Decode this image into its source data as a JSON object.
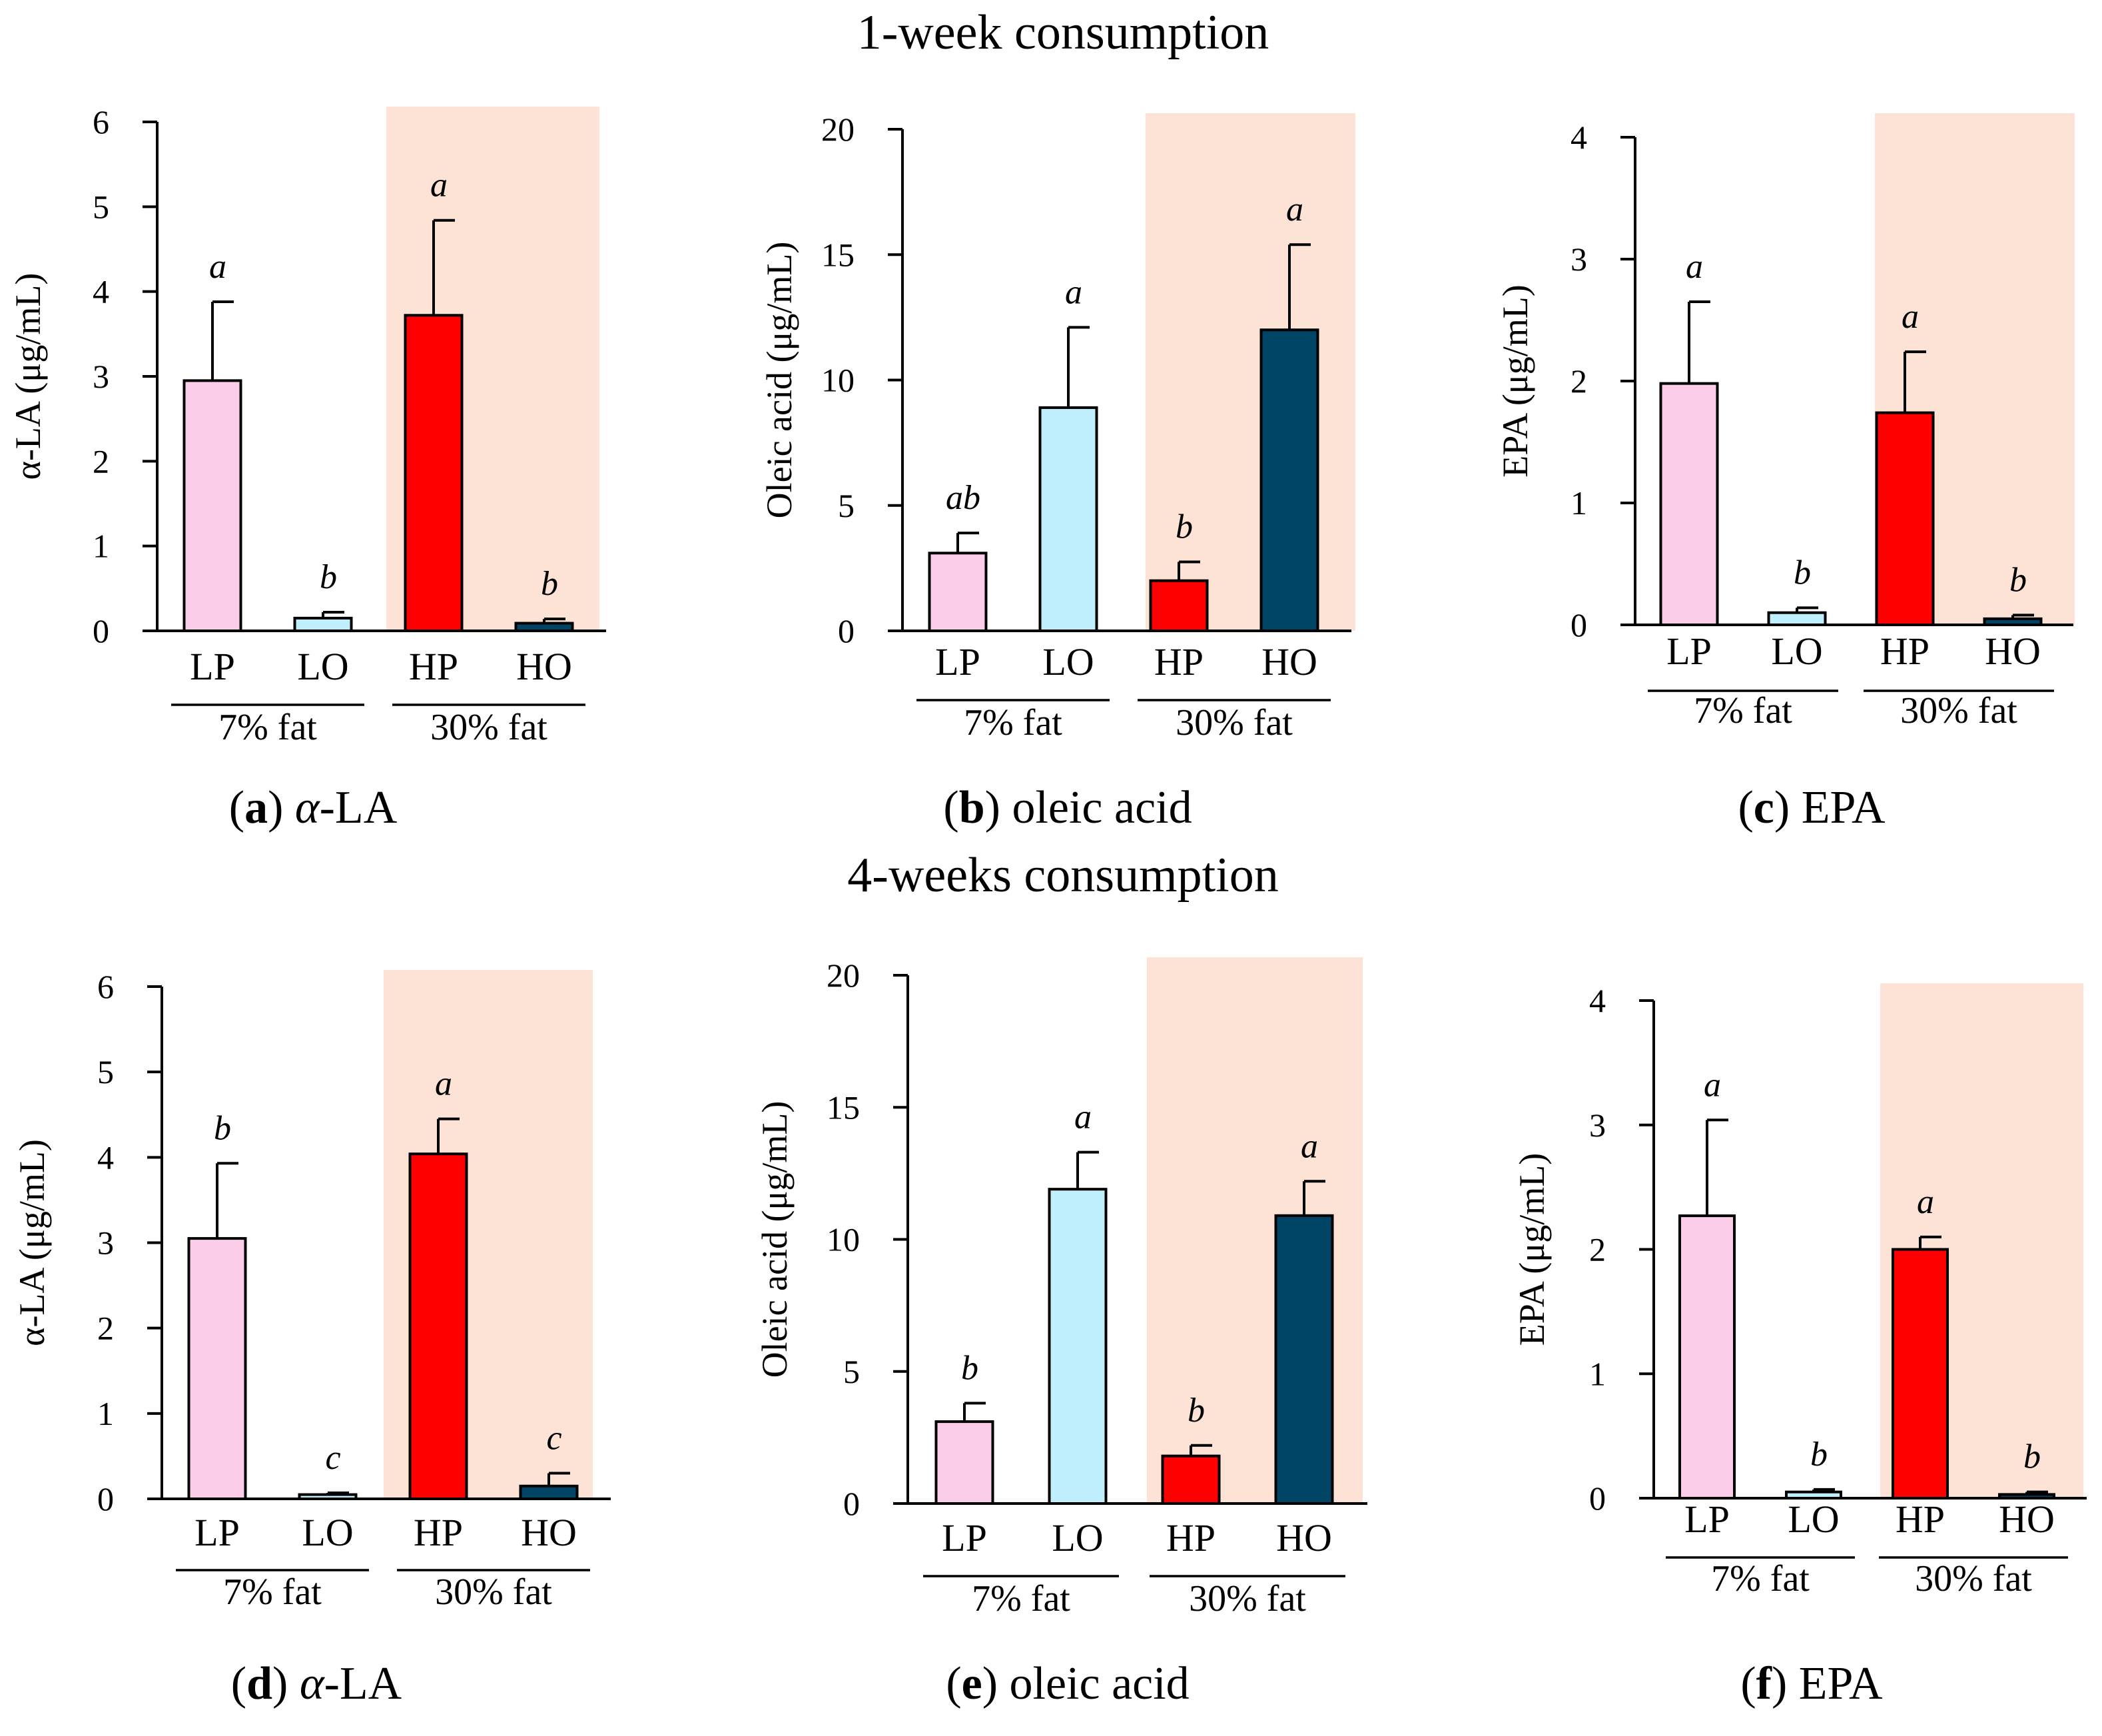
{
  "sections": [
    "1-week consumption",
    "4-weeks consumption"
  ],
  "colors": {
    "LP": "#fccde8",
    "LO": "#bfeefc",
    "HP": "#ff0000",
    "HO": "#004466",
    "shade": "#fde3d6"
  },
  "chart_data": [
    {
      "type": "bar",
      "panel": "a",
      "caption_label": "α-LA",
      "ylabel": "α-LA (μg/mL)",
      "categories": [
        "LP",
        "LO",
        "HP",
        "HO"
      ],
      "values": [
        2.95,
        0.15,
        3.72,
        0.09
      ],
      "errors": [
        0.93,
        0.07,
        1.12,
        0.05
      ],
      "sig": [
        "a",
        "b",
        "a",
        "b"
      ],
      "ylim": [
        0,
        6
      ],
      "yticks": [
        "0",
        "1",
        "2",
        "3",
        "4",
        "5",
        "6"
      ],
      "groups": [
        "7% fat",
        "30% fat"
      ],
      "shaded_group": "30% fat"
    },
    {
      "type": "bar",
      "panel": "b",
      "caption_label": "oleic acid",
      "ylabel": "Oleic acid (μg/mL)",
      "categories": [
        "LP",
        "LO",
        "HP",
        "HO"
      ],
      "values": [
        3.1,
        8.9,
        2.0,
        12.0
      ],
      "errors": [
        0.8,
        3.2,
        0.75,
        3.4
      ],
      "sig": [
        "ab",
        "a",
        "b",
        "a"
      ],
      "ylim": [
        0,
        20
      ],
      "yticks": [
        "0",
        "5",
        "10",
        "15",
        "20"
      ],
      "groups": [
        "7% fat",
        "30% fat"
      ],
      "shaded_group": "30% fat"
    },
    {
      "type": "bar",
      "panel": "c",
      "caption_label": "EPA",
      "ylabel": "EPA (μg/mL)",
      "categories": [
        "LP",
        "LO",
        "HP",
        "HO"
      ],
      "values": [
        1.98,
        0.1,
        1.74,
        0.05
      ],
      "errors": [
        0.67,
        0.04,
        0.5,
        0.03
      ],
      "sig": [
        "a",
        "b",
        "a",
        "b"
      ],
      "ylim": [
        0,
        4
      ],
      "yticks": [
        "0",
        "1",
        "2",
        "3",
        "4"
      ],
      "groups": [
        "7% fat",
        "30% fat"
      ],
      "shaded_group": "30% fat"
    },
    {
      "type": "bar",
      "panel": "d",
      "caption_label": "α-LA",
      "ylabel": "α-LA (μg/mL)",
      "categories": [
        "LP",
        "LO",
        "HP",
        "HO"
      ],
      "values": [
        3.05,
        0.05,
        4.04,
        0.15
      ],
      "errors": [
        0.88,
        0.02,
        0.41,
        0.15
      ],
      "sig": [
        "b",
        "c",
        "a",
        "c"
      ],
      "ylim": [
        0,
        6
      ],
      "yticks": [
        "0",
        "1",
        "2",
        "3",
        "4",
        "5",
        "6"
      ],
      "groups": [
        "7% fat",
        "30% fat"
      ],
      "shaded_group": "30% fat"
    },
    {
      "type": "bar",
      "panel": "e",
      "caption_label": "oleic acid",
      "ylabel": "Oleic acid (μg/mL)",
      "categories": [
        "LP",
        "LO",
        "HP",
        "HO"
      ],
      "values": [
        3.1,
        11.9,
        1.8,
        10.9
      ],
      "errors": [
        0.7,
        1.4,
        0.4,
        1.3
      ],
      "sig": [
        "b",
        "a",
        "b",
        "a"
      ],
      "ylim": [
        0,
        20
      ],
      "yticks": [
        "0",
        "5",
        "10",
        "15",
        "20"
      ],
      "groups": [
        "7% fat",
        "30% fat"
      ],
      "shaded_group": "30% fat"
    },
    {
      "type": "bar",
      "panel": "f",
      "caption_label": "EPA",
      "ylabel": "EPA (μg/mL)",
      "categories": [
        "LP",
        "LO",
        "HP",
        "HO"
      ],
      "values": [
        2.27,
        0.05,
        2.0,
        0.03
      ],
      "errors": [
        0.77,
        0.02,
        0.1,
        0.02
      ],
      "sig": [
        "a",
        "b",
        "a",
        "b"
      ],
      "ylim": [
        0,
        4
      ],
      "yticks": [
        "0",
        "1",
        "2",
        "3",
        "4"
      ],
      "groups": [
        "7% fat",
        "30% fat"
      ],
      "shaded_group": "30% fat"
    }
  ]
}
